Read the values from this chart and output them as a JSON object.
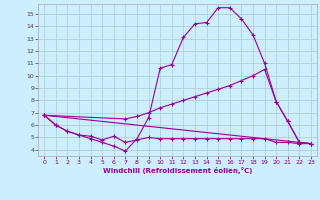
{
  "xlabel": "Windchill (Refroidissement éolien,°C)",
  "background_color": "#cceeff",
  "line_color": "#990099",
  "grid_color": "#aacccc",
  "xlim": [
    -0.5,
    23.5
  ],
  "ylim": [
    3.5,
    15.8
  ],
  "yticks": [
    4,
    5,
    6,
    7,
    8,
    9,
    10,
    11,
    12,
    13,
    14,
    15
  ],
  "xticks": [
    0,
    1,
    2,
    3,
    4,
    5,
    6,
    7,
    8,
    9,
    10,
    11,
    12,
    13,
    14,
    15,
    16,
    17,
    18,
    19,
    20,
    21,
    22,
    23
  ],
  "line1_x": [
    0,
    1,
    2,
    3,
    4,
    5,
    6,
    7,
    8,
    9,
    10,
    11,
    12,
    13,
    14,
    15,
    16,
    17,
    18,
    19,
    20,
    21,
    22,
    23
  ],
  "line1_y": [
    6.8,
    6.0,
    5.5,
    5.2,
    4.9,
    4.6,
    4.3,
    3.9,
    4.9,
    6.6,
    10.6,
    10.9,
    13.1,
    14.2,
    14.3,
    15.5,
    15.5,
    14.6,
    13.3,
    11.0,
    7.9,
    6.3,
    4.6,
    4.5
  ],
  "line2_x": [
    0,
    7,
    8,
    9,
    10,
    11,
    12,
    13,
    14,
    15,
    16,
    17,
    18,
    19,
    20,
    21,
    22,
    23
  ],
  "line2_y": [
    6.8,
    6.5,
    6.7,
    7.0,
    7.4,
    7.7,
    8.0,
    8.3,
    8.6,
    8.9,
    9.2,
    9.6,
    10.0,
    10.5,
    7.9,
    6.3,
    4.6,
    4.5
  ],
  "line3_x": [
    0,
    23
  ],
  "line3_y": [
    6.8,
    4.5
  ],
  "line4_x": [
    0,
    1,
    2,
    3,
    4,
    5,
    6,
    7,
    8,
    9,
    10,
    11,
    12,
    13,
    14,
    15,
    16,
    17,
    18,
    19,
    20,
    21,
    22,
    23
  ],
  "line4_y": [
    6.8,
    6.0,
    5.5,
    5.2,
    5.1,
    4.8,
    5.1,
    4.6,
    4.8,
    5.0,
    4.9,
    4.9,
    4.9,
    4.9,
    4.9,
    4.9,
    4.9,
    4.9,
    4.9,
    4.9,
    4.6,
    4.6,
    4.5,
    4.5
  ]
}
